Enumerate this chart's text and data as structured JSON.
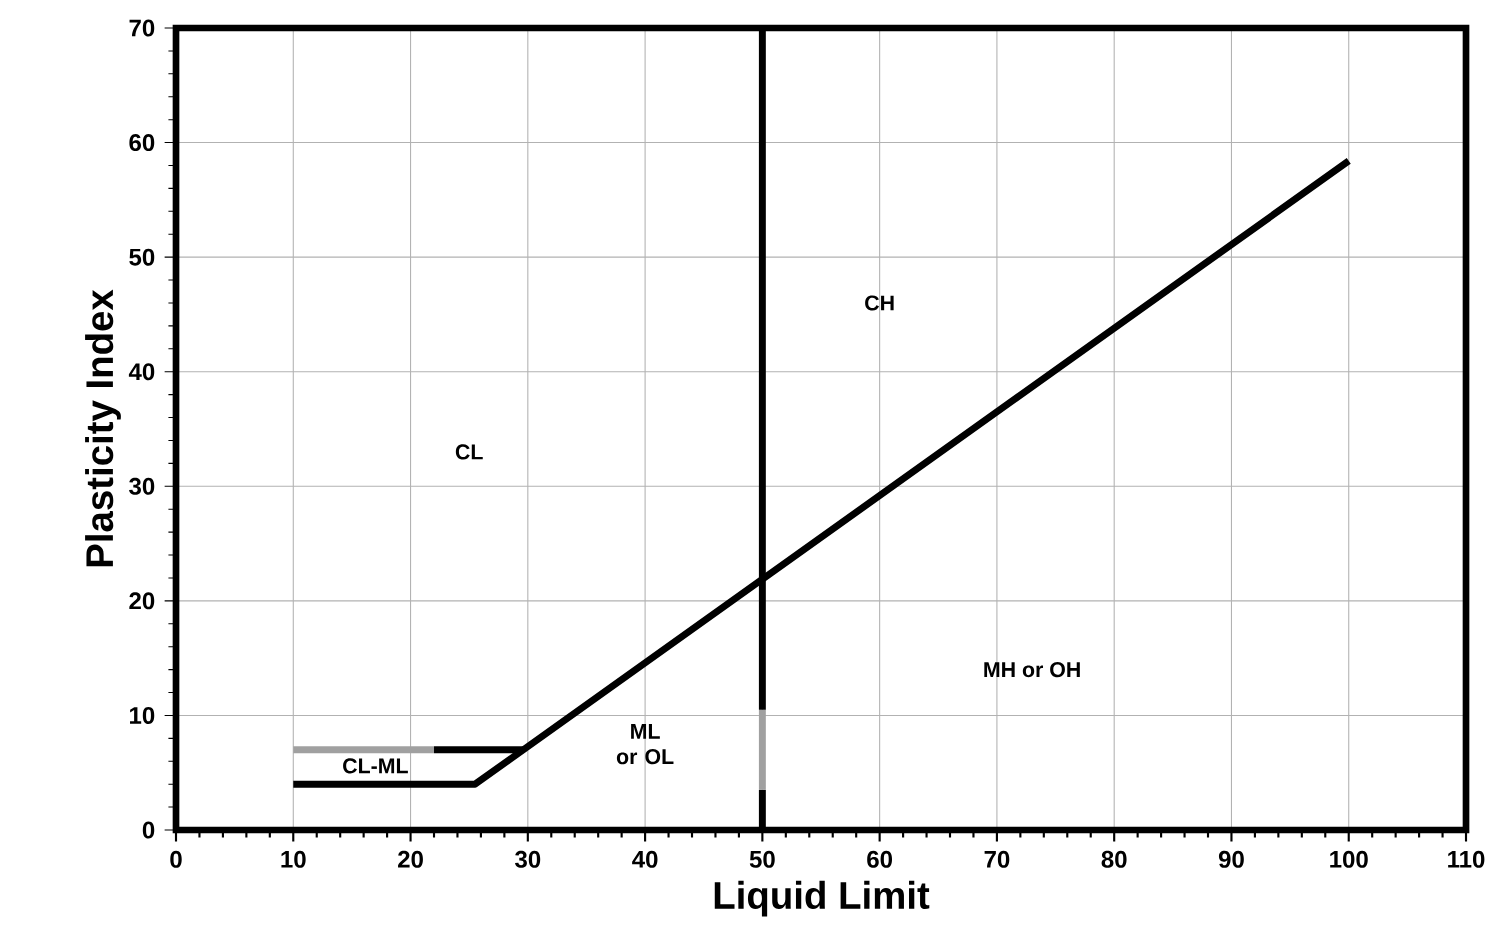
{
  "chart_data": {
    "type": "line",
    "xlabel": "Liquid Limit",
    "ylabel": "Plasticity Index",
    "xlim": [
      0,
      110
    ],
    "xticks": [
      0,
      10,
      20,
      30,
      40,
      50,
      60,
      70,
      80,
      90,
      100,
      110
    ],
    "ylim": [
      0,
      70
    ],
    "yticks": [
      0,
      10,
      20,
      30,
      40,
      50,
      60,
      70
    ],
    "grid": true,
    "marker": "none",
    "line_style": "solid",
    "series": [
      {
        "color": "#000000",
        "x": [
          10,
          25.5,
          100
        ],
        "values": [
          4,
          4,
          58.4
        ]
      },
      {
        "color": "#000000",
        "x": [
          22,
          29.6
        ],
        "values": [
          7,
          7
        ]
      },
      {
        "color": "#a0a0a0",
        "x": [
          10,
          22
        ],
        "values": [
          7,
          7
        ]
      },
      {
        "color": "#000000",
        "x": [
          50,
          50
        ],
        "values": [
          0,
          3.5
        ]
      },
      {
        "color": "#a0a0a0",
        "x": [
          50,
          50
        ],
        "values": [
          3.5,
          10.5
        ]
      },
      {
        "color": "#000000",
        "x": [
          50,
          50
        ],
        "values": [
          10.5,
          70
        ]
      }
    ],
    "annotations": [
      "CL",
      "CH",
      "MH or OH",
      "ML or OL",
      "CL-ML"
    ]
  }
}
